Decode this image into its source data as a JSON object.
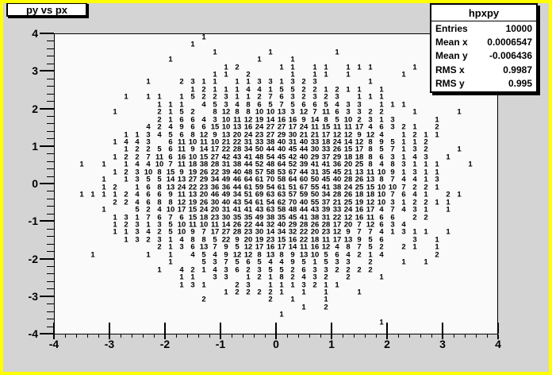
{
  "colors": {
    "canvas_border": "#ffff00",
    "pad_background": "#d4d4d4",
    "frame_background": "#fafafa",
    "box_background": "#ffffff",
    "text": "#000000"
  },
  "stats_box": {
    "title": "hpxpy",
    "rows": [
      {
        "label": "Entries",
        "value": "10000"
      },
      {
        "label": "Mean x",
        "value": "0.0006547"
      },
      {
        "label": "Mean y",
        "value": "-0.006436"
      },
      {
        "label": "RMS x",
        "value": "0.9987"
      },
      {
        "label": "RMS y",
        "value": "0.995"
      }
    ]
  },
  "chart_data": {
    "type": "heatmap",
    "render_style": "text-counts",
    "title": "py vs px",
    "xlabel": "",
    "ylabel": "",
    "x_range": [
      -4,
      4
    ],
    "y_range": [
      -4,
      4
    ],
    "x_tick_labels": [
      "-4",
      "-3",
      "-2",
      "-1",
      "0",
      "1",
      "2",
      "3",
      "4"
    ],
    "y_tick_labels": [
      "4",
      "3",
      "2",
      "1",
      "0",
      "-1",
      "-2",
      "-3",
      "-4"
    ],
    "minor_divisions_per_major": 5,
    "n_bins_x": 40,
    "n_bins_y": 40,
    "entries": 10000,
    "counts_rows_top_to_bottom": [
      [
        0,
        0,
        0,
        0,
        0,
        0,
        0,
        0,
        0,
        0,
        0,
        0,
        0,
        1,
        0,
        0,
        0,
        0,
        0,
        0,
        0,
        0,
        0,
        0,
        0,
        0,
        0,
        0,
        0,
        0,
        0,
        0,
        0,
        0,
        0,
        0,
        0,
        0,
        0,
        0
      ],
      [
        0,
        0,
        0,
        0,
        0,
        0,
        0,
        0,
        0,
        0,
        0,
        0,
        1,
        0,
        0,
        0,
        0,
        0,
        0,
        0,
        0,
        0,
        0,
        0,
        0,
        0,
        0,
        0,
        0,
        0,
        0,
        0,
        0,
        0,
        0,
        0,
        0,
        0,
        0,
        0
      ],
      [
        0,
        0,
        0,
        0,
        0,
        0,
        0,
        0,
        0,
        0,
        0,
        0,
        0,
        0,
        1,
        0,
        0,
        0,
        0,
        1,
        0,
        0,
        0,
        0,
        0,
        1,
        0,
        0,
        0,
        0,
        0,
        0,
        0,
        0,
        0,
        0,
        0,
        0,
        0,
        0
      ],
      [
        0,
        0,
        0,
        0,
        0,
        0,
        0,
        0,
        0,
        0,
        1,
        0,
        0,
        0,
        0,
        0,
        0,
        0,
        1,
        0,
        0,
        1,
        0,
        0,
        0,
        0,
        0,
        0,
        0,
        0,
        0,
        0,
        0,
        0,
        0,
        0,
        0,
        0,
        0,
        0
      ],
      [
        0,
        0,
        0,
        0,
        0,
        0,
        0,
        0,
        0,
        0,
        0,
        0,
        0,
        0,
        0,
        1,
        2,
        0,
        0,
        0,
        1,
        1,
        0,
        1,
        1,
        0,
        1,
        1,
        1,
        0,
        0,
        0,
        1,
        0,
        0,
        0,
        0,
        0,
        0,
        0
      ],
      [
        0,
        0,
        0,
        0,
        0,
        0,
        0,
        0,
        0,
        0,
        0,
        0,
        0,
        0,
        1,
        1,
        0,
        2,
        0,
        0,
        0,
        1,
        0,
        1,
        1,
        0,
        1,
        0,
        0,
        0,
        0,
        1,
        0,
        0,
        0,
        0,
        0,
        0,
        0,
        0
      ],
      [
        0,
        0,
        0,
        0,
        0,
        0,
        0,
        0,
        1,
        0,
        0,
        2,
        3,
        1,
        1,
        0,
        1,
        1,
        3,
        3,
        1,
        3,
        2,
        3,
        0,
        0,
        0,
        0,
        1,
        0,
        0,
        0,
        0,
        0,
        0,
        0,
        0,
        0,
        0,
        0
      ],
      [
        0,
        0,
        0,
        0,
        0,
        0,
        0,
        0,
        0,
        0,
        0,
        0,
        1,
        2,
        1,
        1,
        1,
        4,
        4,
        1,
        5,
        5,
        2,
        2,
        1,
        2,
        1,
        1,
        0,
        1,
        0,
        0,
        0,
        0,
        0,
        0,
        0,
        0,
        0,
        0
      ],
      [
        0,
        0,
        0,
        0,
        0,
        0,
        1,
        0,
        1,
        1,
        0,
        1,
        5,
        2,
        2,
        3,
        1,
        1,
        2,
        7,
        6,
        3,
        2,
        3,
        2,
        3,
        0,
        1,
        1,
        1,
        0,
        0,
        0,
        0,
        0,
        0,
        0,
        0,
        0,
        0
      ],
      [
        0,
        0,
        0,
        0,
        0,
        0,
        0,
        0,
        0,
        1,
        1,
        1,
        0,
        4,
        5,
        3,
        4,
        8,
        6,
        5,
        7,
        5,
        6,
        6,
        5,
        4,
        3,
        3,
        0,
        1,
        1,
        1,
        0,
        0,
        0,
        0,
        0,
        0,
        0,
        0
      ],
      [
        0,
        0,
        0,
        0,
        0,
        1,
        0,
        0,
        0,
        2,
        1,
        5,
        2,
        0,
        8,
        12,
        8,
        8,
        10,
        10,
        13,
        3,
        12,
        7,
        11,
        6,
        3,
        3,
        2,
        2,
        0,
        0,
        1,
        0,
        0,
        0,
        1,
        0,
        0,
        0
      ],
      [
        0,
        0,
        0,
        0,
        0,
        0,
        0,
        0,
        0,
        2,
        1,
        6,
        6,
        4,
        3,
        10,
        11,
        12,
        19,
        14,
        16,
        16,
        9,
        14,
        8,
        5,
        10,
        2,
        3,
        1,
        3,
        0,
        0,
        0,
        1,
        0,
        0,
        0,
        0,
        0
      ],
      [
        0,
        0,
        0,
        0,
        0,
        0,
        0,
        0,
        4,
        2,
        4,
        9,
        6,
        6,
        15,
        10,
        13,
        16,
        24,
        27,
        27,
        17,
        24,
        11,
        15,
        11,
        11,
        17,
        4,
        6,
        3,
        2,
        1,
        0,
        2,
        0,
        0,
        0,
        0,
        0
      ],
      [
        0,
        0,
        0,
        0,
        0,
        0,
        1,
        1,
        3,
        4,
        5,
        6,
        8,
        12,
        9,
        13,
        20,
        24,
        23,
        27,
        29,
        30,
        21,
        21,
        17,
        12,
        12,
        9,
        12,
        4,
        0,
        1,
        2,
        1,
        1,
        0,
        0,
        0,
        0,
        0
      ],
      [
        0,
        0,
        0,
        0,
        0,
        1,
        4,
        4,
        3,
        0,
        6,
        11,
        10,
        11,
        10,
        21,
        22,
        31,
        33,
        38,
        40,
        31,
        40,
        33,
        18,
        24,
        14,
        12,
        8,
        9,
        5,
        1,
        1,
        2,
        0,
        0,
        0,
        0,
        0,
        0
      ],
      [
        0,
        0,
        0,
        0,
        0,
        0,
        1,
        2,
        2,
        5,
        6,
        11,
        9,
        14,
        17,
        22,
        28,
        34,
        50,
        44,
        40,
        45,
        44,
        30,
        33,
        26,
        15,
        17,
        8,
        5,
        7,
        1,
        3,
        2,
        0,
        0,
        1,
        0,
        0,
        0
      ],
      [
        0,
        0,
        0,
        0,
        0,
        1,
        2,
        2,
        7,
        11,
        6,
        16,
        10,
        15,
        27,
        42,
        43,
        41,
        48,
        54,
        45,
        42,
        40,
        29,
        37,
        29,
        18,
        18,
        8,
        6,
        3,
        1,
        4,
        3,
        0,
        1,
        0,
        0,
        0,
        0
      ],
      [
        0,
        0,
        1,
        0,
        1,
        0,
        1,
        4,
        4,
        10,
        7,
        11,
        18,
        38,
        28,
        31,
        38,
        44,
        52,
        48,
        64,
        52,
        39,
        41,
        41,
        36,
        20,
        25,
        8,
        4,
        8,
        3,
        1,
        1,
        1,
        0,
        0,
        1,
        0,
        0
      ],
      [
        0,
        0,
        0,
        0,
        0,
        1,
        2,
        3,
        10,
        8,
        15,
        9,
        19,
        26,
        22,
        39,
        40,
        48,
        57,
        58,
        53,
        67,
        44,
        31,
        35,
        45,
        21,
        13,
        11,
        10,
        9,
        1,
        3,
        1,
        1,
        0,
        0,
        0,
        0,
        0
      ],
      [
        0,
        0,
        0,
        0,
        1,
        0,
        1,
        3,
        5,
        5,
        14,
        13,
        27,
        29,
        34,
        49,
        46,
        64,
        61,
        70,
        58,
        64,
        60,
        50,
        45,
        40,
        28,
        26,
        13,
        8,
        7,
        4,
        4,
        1,
        3,
        0,
        0,
        0,
        0,
        0
      ],
      [
        0,
        0,
        0,
        0,
        1,
        2,
        0,
        1,
        6,
        8,
        13,
        24,
        22,
        23,
        36,
        36,
        44,
        61,
        59,
        54,
        61,
        51,
        67,
        55,
        41,
        38,
        24,
        25,
        15,
        10,
        10,
        7,
        2,
        2,
        1,
        0,
        0,
        0,
        0,
        0
      ],
      [
        0,
        0,
        1,
        1,
        1,
        1,
        2,
        4,
        6,
        6,
        9,
        11,
        13,
        20,
        46,
        49,
        34,
        51,
        69,
        63,
        63,
        57,
        59,
        50,
        34,
        28,
        26,
        18,
        18,
        10,
        7,
        6,
        4,
        1,
        0,
        2,
        1,
        0,
        0,
        0
      ],
      [
        0,
        0,
        0,
        0,
        0,
        2,
        2,
        4,
        6,
        8,
        8,
        12,
        19,
        26,
        30,
        40,
        43,
        54,
        61,
        54,
        62,
        70,
        40,
        55,
        37,
        21,
        25,
        19,
        12,
        10,
        3,
        1,
        2,
        2,
        1,
        1,
        0,
        0,
        0,
        0
      ],
      [
        0,
        0,
        0,
        0,
        1,
        0,
        0,
        5,
        2,
        4,
        10,
        17,
        15,
        24,
        20,
        31,
        41,
        41,
        43,
        63,
        58,
        48,
        44,
        43,
        39,
        33,
        24,
        16,
        17,
        4,
        7,
        4,
        3,
        1,
        0,
        1,
        0,
        0,
        0,
        0
      ],
      [
        0,
        0,
        0,
        0,
        0,
        1,
        3,
        1,
        7,
        6,
        7,
        6,
        15,
        18,
        23,
        30,
        35,
        35,
        49,
        38,
        35,
        45,
        41,
        38,
        31,
        22,
        12,
        16,
        11,
        6,
        6,
        0,
        2,
        2,
        0,
        0,
        0,
        0,
        0,
        0
      ],
      [
        0,
        0,
        0,
        0,
        0,
        1,
        2,
        3,
        1,
        3,
        5,
        10,
        11,
        10,
        11,
        14,
        26,
        22,
        44,
        32,
        40,
        29,
        28,
        26,
        28,
        17,
        20,
        7,
        12,
        6,
        3,
        4,
        0,
        0,
        0,
        0,
        0,
        0,
        0,
        0
      ],
      [
        0,
        0,
        0,
        0,
        0,
        1,
        1,
        3,
        4,
        2,
        5,
        10,
        9,
        7,
        17,
        27,
        28,
        23,
        30,
        14,
        34,
        32,
        22,
        20,
        23,
        12,
        9,
        7,
        7,
        4,
        1,
        3,
        1,
        1,
        0,
        1,
        0,
        0,
        0,
        0
      ],
      [
        0,
        0,
        0,
        0,
        0,
        0,
        1,
        3,
        2,
        3,
        1,
        4,
        8,
        8,
        5,
        22,
        9,
        20,
        19,
        23,
        15,
        16,
        22,
        18,
        11,
        17,
        13,
        9,
        5,
        6,
        0,
        0,
        3,
        0,
        1,
        0,
        0,
        0,
        0,
        0
      ],
      [
        0,
        0,
        0,
        0,
        0,
        0,
        0,
        0,
        0,
        2,
        1,
        3,
        6,
        13,
        7,
        9,
        5,
        12,
        17,
        16,
        17,
        14,
        11,
        16,
        12,
        4,
        8,
        7,
        5,
        2,
        0,
        2,
        1,
        0,
        1,
        0,
        0,
        0,
        0,
        0
      ],
      [
        0,
        0,
        0,
        1,
        0,
        0,
        0,
        0,
        1,
        0,
        1,
        0,
        4,
        5,
        4,
        9,
        12,
        12,
        8,
        13,
        8,
        9,
        13,
        10,
        5,
        6,
        4,
        2,
        1,
        4,
        0,
        0,
        0,
        0,
        2,
        0,
        0,
        0,
        0,
        0
      ],
      [
        0,
        0,
        0,
        0,
        0,
        0,
        0,
        0,
        0,
        0,
        1,
        0,
        0,
        5,
        3,
        7,
        5,
        6,
        5,
        4,
        4,
        9,
        5,
        1,
        5,
        3,
        3,
        0,
        2,
        0,
        0,
        1,
        0,
        1,
        0,
        0,
        0,
        0,
        0,
        0
      ],
      [
        0,
        0,
        0,
        0,
        0,
        0,
        0,
        0,
        0,
        1,
        0,
        4,
        2,
        1,
        4,
        3,
        6,
        2,
        3,
        5,
        5,
        2,
        6,
        3,
        3,
        2,
        2,
        2,
        2,
        0,
        0,
        0,
        0,
        0,
        0,
        0,
        0,
        0,
        0,
        0
      ],
      [
        0,
        0,
        0,
        0,
        0,
        0,
        0,
        0,
        0,
        0,
        0,
        1,
        1,
        0,
        3,
        3,
        0,
        1,
        2,
        1,
        8,
        2,
        4,
        3,
        2,
        0,
        2,
        0,
        0,
        1,
        0,
        0,
        0,
        0,
        0,
        0,
        0,
        0,
        0,
        0
      ],
      [
        0,
        0,
        0,
        0,
        0,
        0,
        0,
        0,
        0,
        0,
        0,
        1,
        3,
        1,
        0,
        0,
        2,
        3,
        0,
        1,
        1,
        1,
        3,
        2,
        1,
        1,
        0,
        0,
        0,
        0,
        0,
        0,
        0,
        0,
        0,
        0,
        0,
        0,
        0,
        0
      ],
      [
        0,
        0,
        0,
        0,
        0,
        0,
        0,
        0,
        0,
        0,
        0,
        0,
        0,
        0,
        0,
        1,
        2,
        2,
        2,
        2,
        1,
        0,
        1,
        0,
        1,
        0,
        0,
        1,
        0,
        0,
        0,
        0,
        0,
        0,
        0,
        0,
        0,
        0,
        0,
        0
      ],
      [
        0,
        0,
        0,
        0,
        0,
        0,
        0,
        0,
        0,
        0,
        0,
        0,
        0,
        2,
        0,
        0,
        0,
        0,
        0,
        2,
        0,
        1,
        0,
        0,
        1,
        0,
        0,
        0,
        0,
        0,
        0,
        0,
        0,
        0,
        0,
        0,
        0,
        0,
        0,
        0
      ],
      [
        0,
        0,
        0,
        0,
        0,
        0,
        0,
        0,
        0,
        0,
        0,
        0,
        0,
        0,
        0,
        0,
        0,
        0,
        0,
        0,
        0,
        0,
        1,
        0,
        2,
        0,
        0,
        0,
        0,
        0,
        0,
        0,
        0,
        0,
        0,
        0,
        0,
        0,
        0,
        0
      ],
      [
        0,
        0,
        0,
        0,
        0,
        0,
        0,
        0,
        0,
        0,
        0,
        0,
        0,
        0,
        0,
        0,
        0,
        0,
        0,
        0,
        1,
        0,
        0,
        0,
        0,
        0,
        0,
        0,
        0,
        0,
        0,
        0,
        0,
        0,
        0,
        0,
        0,
        0,
        0,
        0
      ],
      [
        0,
        0,
        0,
        0,
        0,
        0,
        0,
        0,
        0,
        0,
        0,
        0,
        0,
        0,
        0,
        0,
        0,
        0,
        0,
        0,
        0,
        0,
        0,
        0,
        0,
        0,
        0,
        0,
        0,
        1,
        0,
        0,
        0,
        0,
        0,
        0,
        0,
        0,
        0,
        0
      ],
      [
        0,
        0,
        0,
        0,
        0,
        0,
        0,
        0,
        0,
        0,
        0,
        0,
        0,
        0,
        0,
        0,
        0,
        0,
        0,
        0,
        0,
        0,
        0,
        0,
        0,
        0,
        0,
        0,
        0,
        0,
        0,
        0,
        0,
        0,
        0,
        0,
        0,
        0,
        0,
        0
      ]
    ]
  }
}
